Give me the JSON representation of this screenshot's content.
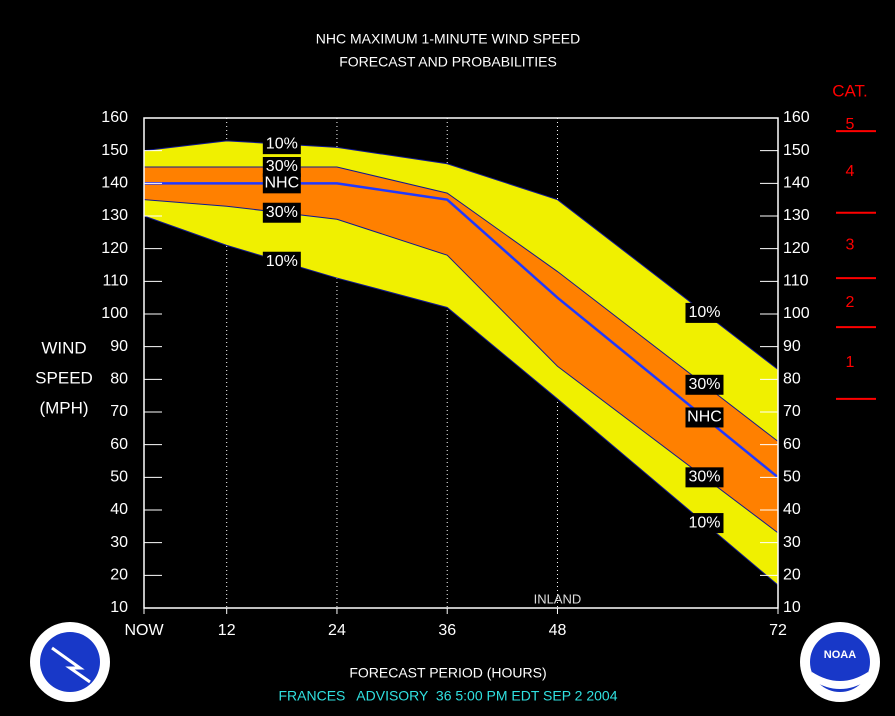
{
  "chart_data": {
    "type": "band",
    "title": "NHC MAXIMUM 1-MINUTE WIND SPEED",
    "subtitle": "FORECAST AND PROBABILITIES",
    "ylabel": [
      "WIND",
      "SPEED",
      "(MPH)"
    ],
    "xlabel": "FORECAST PERIOD (HOURS)",
    "footer": "FRANCES   ADVISORY  36 5:00 PM EDT SEP 2 2004",
    "annotation": {
      "text": "INLAND",
      "x": 48
    },
    "x": [
      3,
      12,
      24,
      36,
      48,
      72
    ],
    "xlim": [
      3,
      72
    ],
    "xticks": [
      {
        "value": 3,
        "label": "NOW"
      },
      12,
      24,
      36,
      48,
      72
    ],
    "ylim": [
      10,
      160
    ],
    "yticks": [
      10,
      20,
      30,
      40,
      50,
      60,
      70,
      80,
      90,
      100,
      110,
      120,
      130,
      140,
      150,
      160
    ],
    "xgrid": true,
    "series": [
      {
        "name": "10%",
        "color": "#f0f000",
        "values": [
          150,
          153,
          151,
          146,
          135,
          83
        ]
      },
      {
        "name": "30%",
        "color": "#ff8000",
        "values": [
          145,
          145,
          145,
          137,
          113,
          61
        ]
      },
      {
        "name": "NHC",
        "color": "#2038ff",
        "values": [
          140,
          140,
          140,
          135,
          105,
          50
        ]
      },
      {
        "name": "30%",
        "color": "#ff8000",
        "values": [
          135,
          133,
          129,
          118,
          84,
          33
        ]
      },
      {
        "name": "10%",
        "color": "#f0f000",
        "values": [
          130,
          121,
          111,
          102,
          74,
          17
        ]
      }
    ],
    "category_scale": {
      "title": "CAT.",
      "color": "#ff0000",
      "labels": [
        "1",
        "2",
        "3",
        "4",
        "5"
      ],
      "thresholds": [
        74,
        96,
        111,
        131,
        156
      ]
    },
    "logos": {
      "left": "NATIONAL WEATHER SERVICE",
      "right": "NOAA"
    }
  }
}
